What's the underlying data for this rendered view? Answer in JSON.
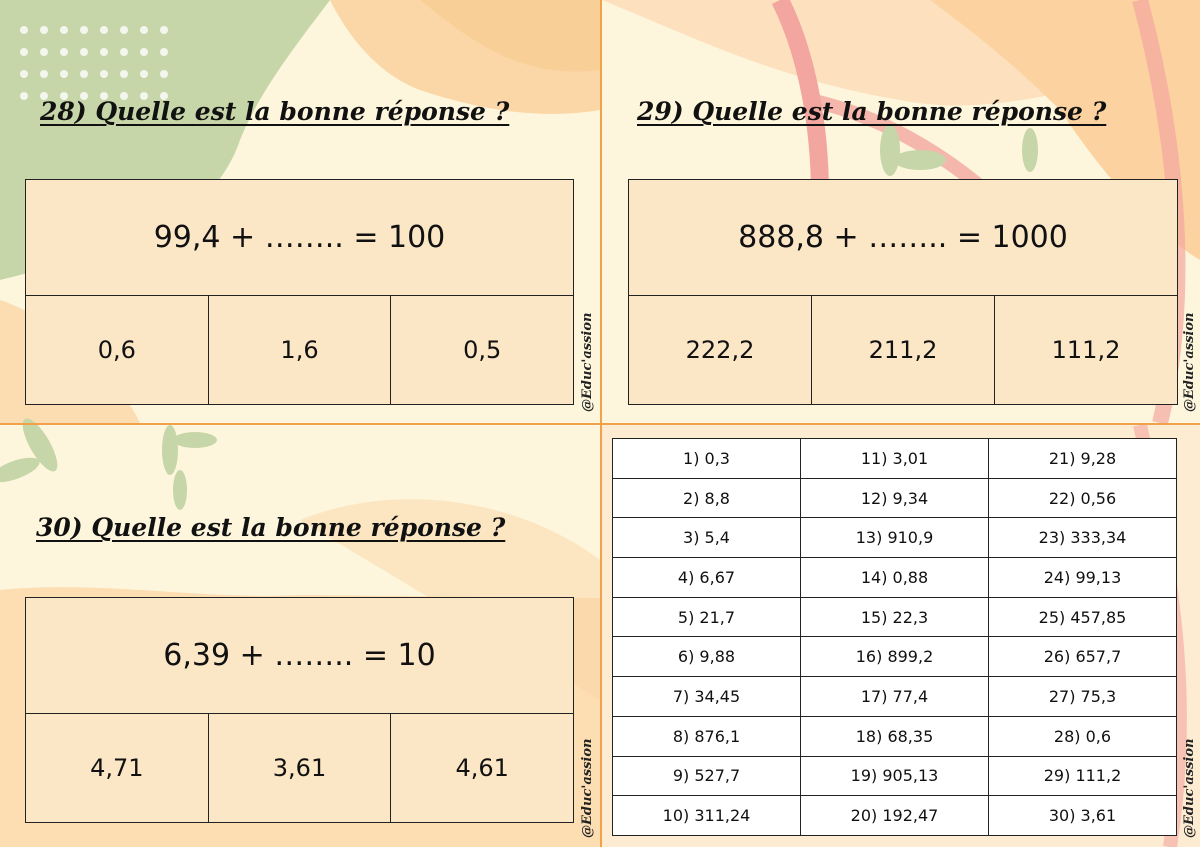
{
  "questions": [
    {
      "title": "28) Quelle est la bonne réponse ?",
      "equation": "99,4 + …….. = 100",
      "answers": [
        "0,6",
        "1,6",
        "0,5"
      ]
    },
    {
      "title": "29) Quelle est la bonne réponse ?",
      "equation": "888,8 + …….. = 1000",
      "answers": [
        "222,2",
        "211,2",
        "111,2"
      ]
    },
    {
      "title": "30) Quelle est la bonne réponse ?",
      "equation": "6,39 + …….. = 10",
      "answers": [
        "4,71",
        "3,61",
        "4,61"
      ]
    }
  ],
  "credit": "@Educ'assion",
  "answer_key": [
    [
      "1) 0,3",
      "11) 3,01",
      "21) 9,28"
    ],
    [
      "2) 8,8",
      "12) 9,34",
      "22) 0,56"
    ],
    [
      "3) 5,4",
      "13) 910,9",
      "23) 333,34"
    ],
    [
      "4) 6,67",
      "14) 0,88",
      "24) 99,13"
    ],
    [
      "5) 21,7",
      "15) 22,3",
      "25) 457,85"
    ],
    [
      "6) 9,88",
      "16) 899,2",
      "26) 657,7"
    ],
    [
      "7) 34,45",
      "17) 77,4",
      "27) 75,3"
    ],
    [
      "8) 876,1",
      "18) 68,35",
      "28) 0,6"
    ],
    [
      "9) 527,7",
      "19) 905,13",
      "29) 111,2"
    ],
    [
      "10) 311,24",
      "20) 192,47",
      "30) 3,61"
    ]
  ],
  "colors": {
    "background": "#fdf6dc",
    "box_fill": "#fbe6c6",
    "divider": "#f0a14a",
    "green_blob": "#c5d4a6",
    "orange_blob": "#fcd7a7",
    "pink_arc": "#f3a6a0"
  }
}
